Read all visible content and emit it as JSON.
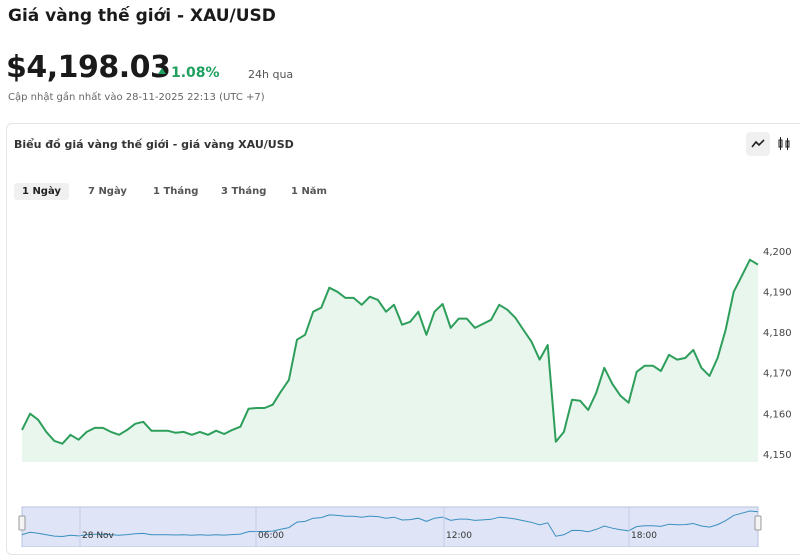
{
  "header": {
    "title": "Giá vàng thế giới - XAU/USD",
    "price": "$4,198.03",
    "change": "1.08%",
    "change_period": "24h qua",
    "updated": "Cập nhật gần nhất vào 28-11-2025 22:13 (UTC +7)"
  },
  "card": {
    "title": "Biểu đồ giá vàng thế giới - giá vàng XAU/USD",
    "tabs": [
      "1 Ngày",
      "7 Ngày",
      "1 Tháng",
      "3 Tháng",
      "1 Năm"
    ],
    "active_tab": 0
  },
  "chart_data": {
    "type": "area",
    "color": "#2e9e5b",
    "fill": "#e9f6ee",
    "values": [
      4155.9,
      4159.9,
      4158.4,
      4155.4,
      4153.2,
      4152.5,
      4154.7,
      4153.5,
      4155.4,
      4156.4,
      4156.4,
      4155.4,
      4154.7,
      4155.9,
      4157.4,
      4157.9,
      4155.7,
      4155.7,
      4155.7,
      4155.2,
      4155.4,
      4154.7,
      4155.4,
      4154.7,
      4155.7,
      4154.9,
      4155.9,
      4156.7,
      4161.1,
      4161.3,
      4161.3,
      4162.1,
      4165.3,
      4168.2,
      4178.1,
      4179.3,
      4185.0,
      4186.0,
      4190.9,
      4189.9,
      4188.4,
      4188.4,
      4186.7,
      4188.7,
      4187.9,
      4185.0,
      4186.7,
      4181.8,
      4182.5,
      4185.0,
      4179.3,
      4185.0,
      4186.9,
      4181.0,
      4183.3,
      4183.3,
      4181.0,
      4182.0,
      4183.0,
      4186.7,
      4185.5,
      4183.5,
      4180.5,
      4177.6,
      4173.2,
      4176.8,
      4153.0,
      4155.4,
      4163.3,
      4163.1,
      4160.8,
      4165.0,
      4171.2,
      4167.2,
      4164.3,
      4162.6,
      4170.2,
      4171.7,
      4171.7,
      4170.4,
      4174.4,
      4173.2,
      4173.6,
      4175.6,
      4171.2,
      4169.2,
      4173.6,
      4180.5,
      4189.9,
      4193.8,
      4197.8,
      4196.6
    ],
    "ylim": [
      4148,
      4212
    ],
    "yticks": [
      {
        "value": 4150,
        "label": "4,150"
      },
      {
        "value": 4160,
        "label": "4,160"
      },
      {
        "value": 4170,
        "label": "4,170"
      },
      {
        "value": 4180,
        "label": "4,180"
      },
      {
        "value": 4190,
        "label": "4,190"
      },
      {
        "value": 4200,
        "label": "4,200"
      }
    ],
    "navigator_labels": [
      "28 Nov",
      "06:00",
      "12:00",
      "18:00"
    ]
  }
}
